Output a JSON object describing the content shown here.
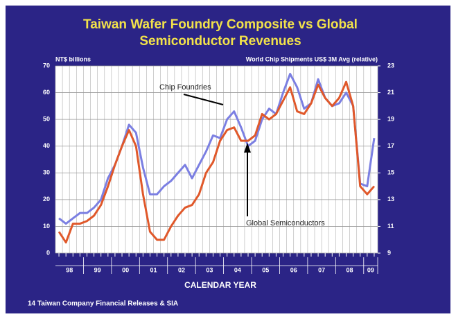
{
  "chart_data": {
    "type": "line",
    "title": [
      "Taiwan Wafer Foundry Composite vs Global",
      "Semiconductor Revenues"
    ],
    "y_label": "NT$ billions",
    "y2_label": "World Chip Shipments US$ 3M Avg (relative)",
    "x_label": "CALENDAR YEAR",
    "source": "14 Taiwan Company Financial Releases & SIA",
    "year_labels": [
      "98",
      "99",
      "00",
      "01",
      "02",
      "03",
      "04",
      "05",
      "06",
      "07",
      "08",
      "09"
    ],
    "ylim": [
      0,
      70
    ],
    "yticks": [
      0,
      10,
      20,
      30,
      40,
      50,
      60,
      70
    ],
    "y2lim": [
      9,
      23
    ],
    "y2ticks": [
      9,
      11,
      13,
      15,
      17,
      19,
      21,
      23
    ],
    "grid": true,
    "series": [
      {
        "name": "Chip Foundries",
        "color": "#7b7fe2",
        "axis": "y",
        "values": [
          13,
          11,
          13,
          15,
          15,
          17,
          20,
          28,
          33,
          40,
          48,
          45,
          32,
          22,
          22,
          25,
          27,
          30,
          33,
          28,
          33,
          38,
          44,
          43,
          50,
          53,
          47,
          40,
          42,
          50,
          54,
          52,
          60,
          67,
          62,
          54,
          56,
          65,
          58,
          55,
          56,
          60,
          55,
          26,
          25,
          43
        ]
      },
      {
        "name": "Global Semiconductors",
        "color": "#e0582a",
        "axis": "y2",
        "values": [
          10.6,
          9.8,
          11.2,
          11.2,
          11.4,
          11.8,
          12.6,
          14,
          15.6,
          17,
          18.2,
          17,
          13.4,
          10.6,
          10,
          10,
          11,
          11.8,
          12.4,
          12.6,
          13.4,
          15,
          15.8,
          17.4,
          18.2,
          18.4,
          17.4,
          17.4,
          17.8,
          19.4,
          19,
          19.4,
          20.4,
          21.4,
          19.6,
          19.4,
          20.2,
          21.6,
          20.6,
          20,
          20.6,
          21.8,
          20,
          14,
          13.4,
          14
        ]
      }
    ]
  }
}
